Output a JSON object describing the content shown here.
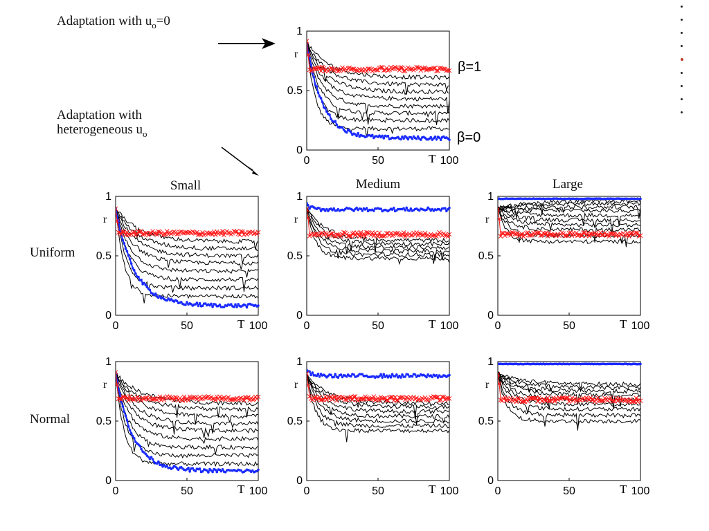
{
  "annotations": {
    "u0_zero_prefix": "Adaptation with u",
    "u0_zero_sub": "o",
    "u0_zero_suffix": "=0",
    "hetero_line1": "Adaptation with",
    "hetero_line2_prefix": "heterogeneous u",
    "hetero_line2_sub": "o"
  },
  "column_labels": [
    "Small",
    "Medium",
    "Large"
  ],
  "row_labels": [
    "Uniform",
    "Normal"
  ],
  "beta_labels": {
    "top": "β=1",
    "bottom": "β=0"
  },
  "nav": {
    "dot_count": 9,
    "active_index": 4
  },
  "colors": {
    "red": "#ff1a1a",
    "blue": "#1a2bff",
    "black": "#000000"
  },
  "chart_data": [
    {
      "id": "top",
      "type": "line",
      "xlabel": "T",
      "ylabel": "r",
      "xlim": [
        0,
        100
      ],
      "ylim": [
        0,
        1
      ],
      "xticks": [
        0,
        50,
        100
      ],
      "yticks": [
        0,
        0.5,
        1
      ],
      "red_level": 0.68,
      "blue": {
        "start": 0.9,
        "end": 0.1,
        "tau": 11
      },
      "black_ends": [
        0.18,
        0.25,
        0.31,
        0.37,
        0.43,
        0.49,
        0.55,
        0.61
      ],
      "blue_markers": "circle"
    },
    {
      "id": "uniform-small",
      "type": "line",
      "xlabel": "T",
      "ylabel": "r",
      "xlim": [
        0,
        100
      ],
      "ylim": [
        0,
        1
      ],
      "xticks": [
        0,
        50,
        100
      ],
      "yticks": [
        0,
        0.5,
        1
      ],
      "red_level": 0.69,
      "blue": {
        "start": 0.9,
        "end": 0.08,
        "tau": 13
      },
      "black_ends": [
        0.16,
        0.23,
        0.3,
        0.37,
        0.44,
        0.5,
        0.56,
        0.62
      ],
      "blue_markers": "circle"
    },
    {
      "id": "uniform-medium",
      "type": "line",
      "xlabel": "T",
      "ylabel": "r",
      "xlim": [
        0,
        100
      ],
      "ylim": [
        0,
        1
      ],
      "xticks": [
        0,
        50,
        100
      ],
      "yticks": [
        0,
        0.5,
        1
      ],
      "red_level": 0.68,
      "blue": {
        "start": 0.93,
        "end": 0.89,
        "tau": 3
      },
      "black_ends": [
        0.48,
        0.51,
        0.54,
        0.57,
        0.6,
        0.63
      ],
      "blue_markers": "circle"
    },
    {
      "id": "uniform-large",
      "type": "line",
      "xlabel": "T",
      "ylabel": "r",
      "xlim": [
        0,
        100
      ],
      "ylim": [
        0,
        1
      ],
      "xticks": [
        0,
        50,
        100
      ],
      "yticks": [
        0,
        0.5,
        1
      ],
      "red_level": 0.68,
      "blue": {
        "start": 0.98,
        "end": 0.98,
        "tau": 1
      },
      "black_ends": [
        0.62,
        0.67,
        0.72,
        0.76,
        0.8,
        0.84,
        0.88,
        0.91,
        0.94,
        0.96
      ],
      "blue_markers": "circle"
    },
    {
      "id": "normal-small",
      "type": "line",
      "xlabel": "T",
      "ylabel": "r",
      "xlim": [
        0,
        100
      ],
      "ylim": [
        0,
        1
      ],
      "xticks": [
        0,
        50,
        100
      ],
      "yticks": [
        0,
        0.5,
        1
      ],
      "red_level": 0.69,
      "blue": {
        "start": 0.9,
        "end": 0.08,
        "tau": 12
      },
      "black_ends": [
        0.14,
        0.21,
        0.28,
        0.35,
        0.42,
        0.48,
        0.54,
        0.6,
        0.65
      ],
      "blue_markers": "circle"
    },
    {
      "id": "normal-medium",
      "type": "line",
      "xlabel": "T",
      "ylabel": "r",
      "xlim": [
        0,
        100
      ],
      "ylim": [
        0,
        1
      ],
      "xticks": [
        0,
        50,
        100
      ],
      "yticks": [
        0,
        0.5,
        1
      ],
      "red_level": 0.69,
      "blue": {
        "start": 0.93,
        "end": 0.88,
        "tau": 3
      },
      "black_ends": [
        0.42,
        0.46,
        0.5,
        0.54,
        0.58,
        0.62,
        0.65
      ],
      "blue_markers": "circle"
    },
    {
      "id": "normal-large",
      "type": "line",
      "xlabel": "T",
      "ylabel": "r",
      "xlim": [
        0,
        100
      ],
      "ylim": [
        0,
        1
      ],
      "xticks": [
        0,
        50,
        100
      ],
      "yticks": [
        0,
        0.5,
        1
      ],
      "red_level": 0.68,
      "blue": {
        "start": 0.98,
        "end": 0.98,
        "tau": 1
      },
      "black_ends": [
        0.5,
        0.55,
        0.6,
        0.64,
        0.68,
        0.72,
        0.75,
        0.78,
        0.81
      ],
      "blue_markers": "circle"
    }
  ]
}
